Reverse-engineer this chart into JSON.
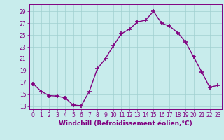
{
  "x": [
    0,
    1,
    2,
    3,
    4,
    5,
    6,
    7,
    8,
    9,
    10,
    11,
    12,
    13,
    14,
    15,
    16,
    17,
    18,
    19,
    20,
    21,
    22,
    23
  ],
  "y": [
    16.8,
    15.5,
    14.8,
    14.7,
    14.4,
    13.2,
    13.1,
    15.5,
    19.3,
    21.0,
    23.2,
    25.2,
    26.0,
    27.2,
    27.5,
    29.0,
    27.0,
    26.5,
    25.4,
    23.8,
    21.3,
    18.8,
    16.2,
    16.5
  ],
  "line_color": "#800080",
  "marker": "+",
  "markersize": 4,
  "linewidth": 1.0,
  "bg_color": "#c8ecec",
  "grid_color": "#a0d0d0",
  "xlabel": "Windchill (Refroidissement éolien,°C)",
  "xlabel_fontsize": 6.5,
  "ylabel_ticks": [
    13,
    15,
    17,
    19,
    21,
    23,
    25,
    27,
    29
  ],
  "xtick_labels": [
    "0",
    "1",
    "2",
    "3",
    "4",
    "5",
    "6",
    "7",
    "8",
    "9",
    "10",
    "11",
    "12",
    "13",
    "14",
    "15",
    "16",
    "17",
    "18",
    "19",
    "20",
    "21",
    "22",
    "23"
  ],
  "ylim": [
    12.5,
    30.2
  ],
  "xlim": [
    -0.5,
    23.5
  ],
  "tick_fontsize": 5.5,
  "label_color": "#800080",
  "markeredgewidth": 1.2
}
